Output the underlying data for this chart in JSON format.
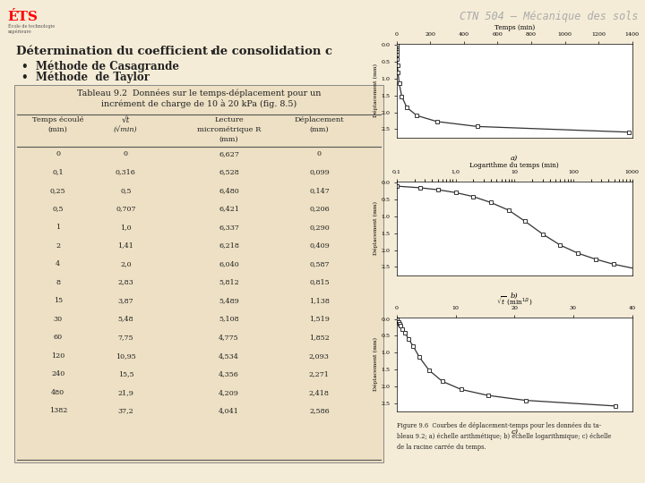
{
  "title": "CTN 504 – Mécanique des sols",
  "heading": "Détermination du coefficient de consolidation c",
  "heading_sub": "v",
  "bullets": [
    "Méthode de Casagrande",
    "Méthode  de Taylor"
  ],
  "table_title": "Tableau 9.2",
  "table_desc_line1": "Données sur le temps-déplacement pour un",
  "table_desc_line2": "incrément de charge de 10 à 20 kPa (fig. 8.5)",
  "time": [
    0,
    0.1,
    0.25,
    0.5,
    1,
    2,
    4,
    8,
    15,
    30,
    60,
    120,
    240,
    480,
    1382
  ],
  "sqrt_t": [
    0,
    0.316,
    0.5,
    0.707,
    1.0,
    1.41,
    2.0,
    2.83,
    3.87,
    5.48,
    7.75,
    10.95,
    15.5,
    21.9,
    37.2
  ],
  "lecture": [
    6.627,
    6.528,
    6.48,
    6.421,
    6.337,
    6.218,
    6.04,
    5.812,
    5.489,
    5.108,
    4.775,
    4.534,
    4.356,
    4.209,
    4.041
  ],
  "deplacement": [
    0,
    0.099,
    0.147,
    0.206,
    0.29,
    0.409,
    0.587,
    0.815,
    1.138,
    1.519,
    1.852,
    2.093,
    2.271,
    2.418,
    2.586
  ],
  "fig_caption_line1": "Figure 9.6  Courbes de déplacement-temps pour les données du ta-",
  "fig_caption_line2": "bleau 9.2; a) échelle arithmétique; b) échelle logarithmique; c) échelle",
  "fig_caption_line3": "de la racine carrée du temps.",
  "bg_color": "#f5ecd7",
  "table_bg": "#ede0c4",
  "chart_bg": "#ffffff",
  "graph_line_color": "#333333",
  "graph_marker_color": "#333333"
}
